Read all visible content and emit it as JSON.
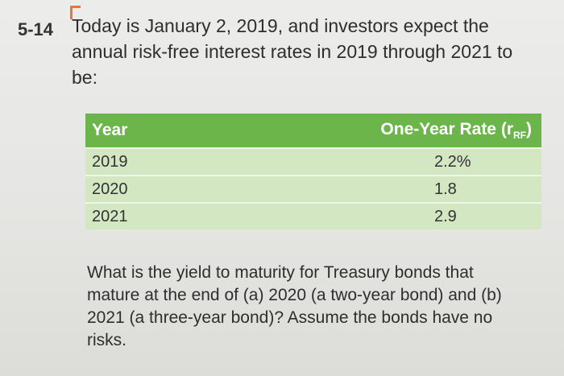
{
  "problem": {
    "number": "5-14",
    "intro": "Today is January 2, 2019, and investors expect the annual risk-free interest rates in 2019 through 2021 to be:",
    "question": "What is the yield to maturity for Treasury bonds that mature at the end of (a) 2020 (a two-year bond) and (b) 2021 (a three-year bond)? Assume the bonds have no risks."
  },
  "table": {
    "header_year": "Year",
    "header_rate": "One-Year Rate (r",
    "header_rate_sub": "RF",
    "header_rate_close": ")",
    "rows": [
      {
        "year": "2019",
        "rate": "2.2%"
      },
      {
        "year": "2020",
        "rate": "1.8"
      },
      {
        "year": "2021",
        "rate": "2.9"
      }
    ]
  },
  "colors": {
    "header_green": "#6bb54a",
    "row_green": "#d3e7c2",
    "accent_orange": "#e4763e"
  }
}
